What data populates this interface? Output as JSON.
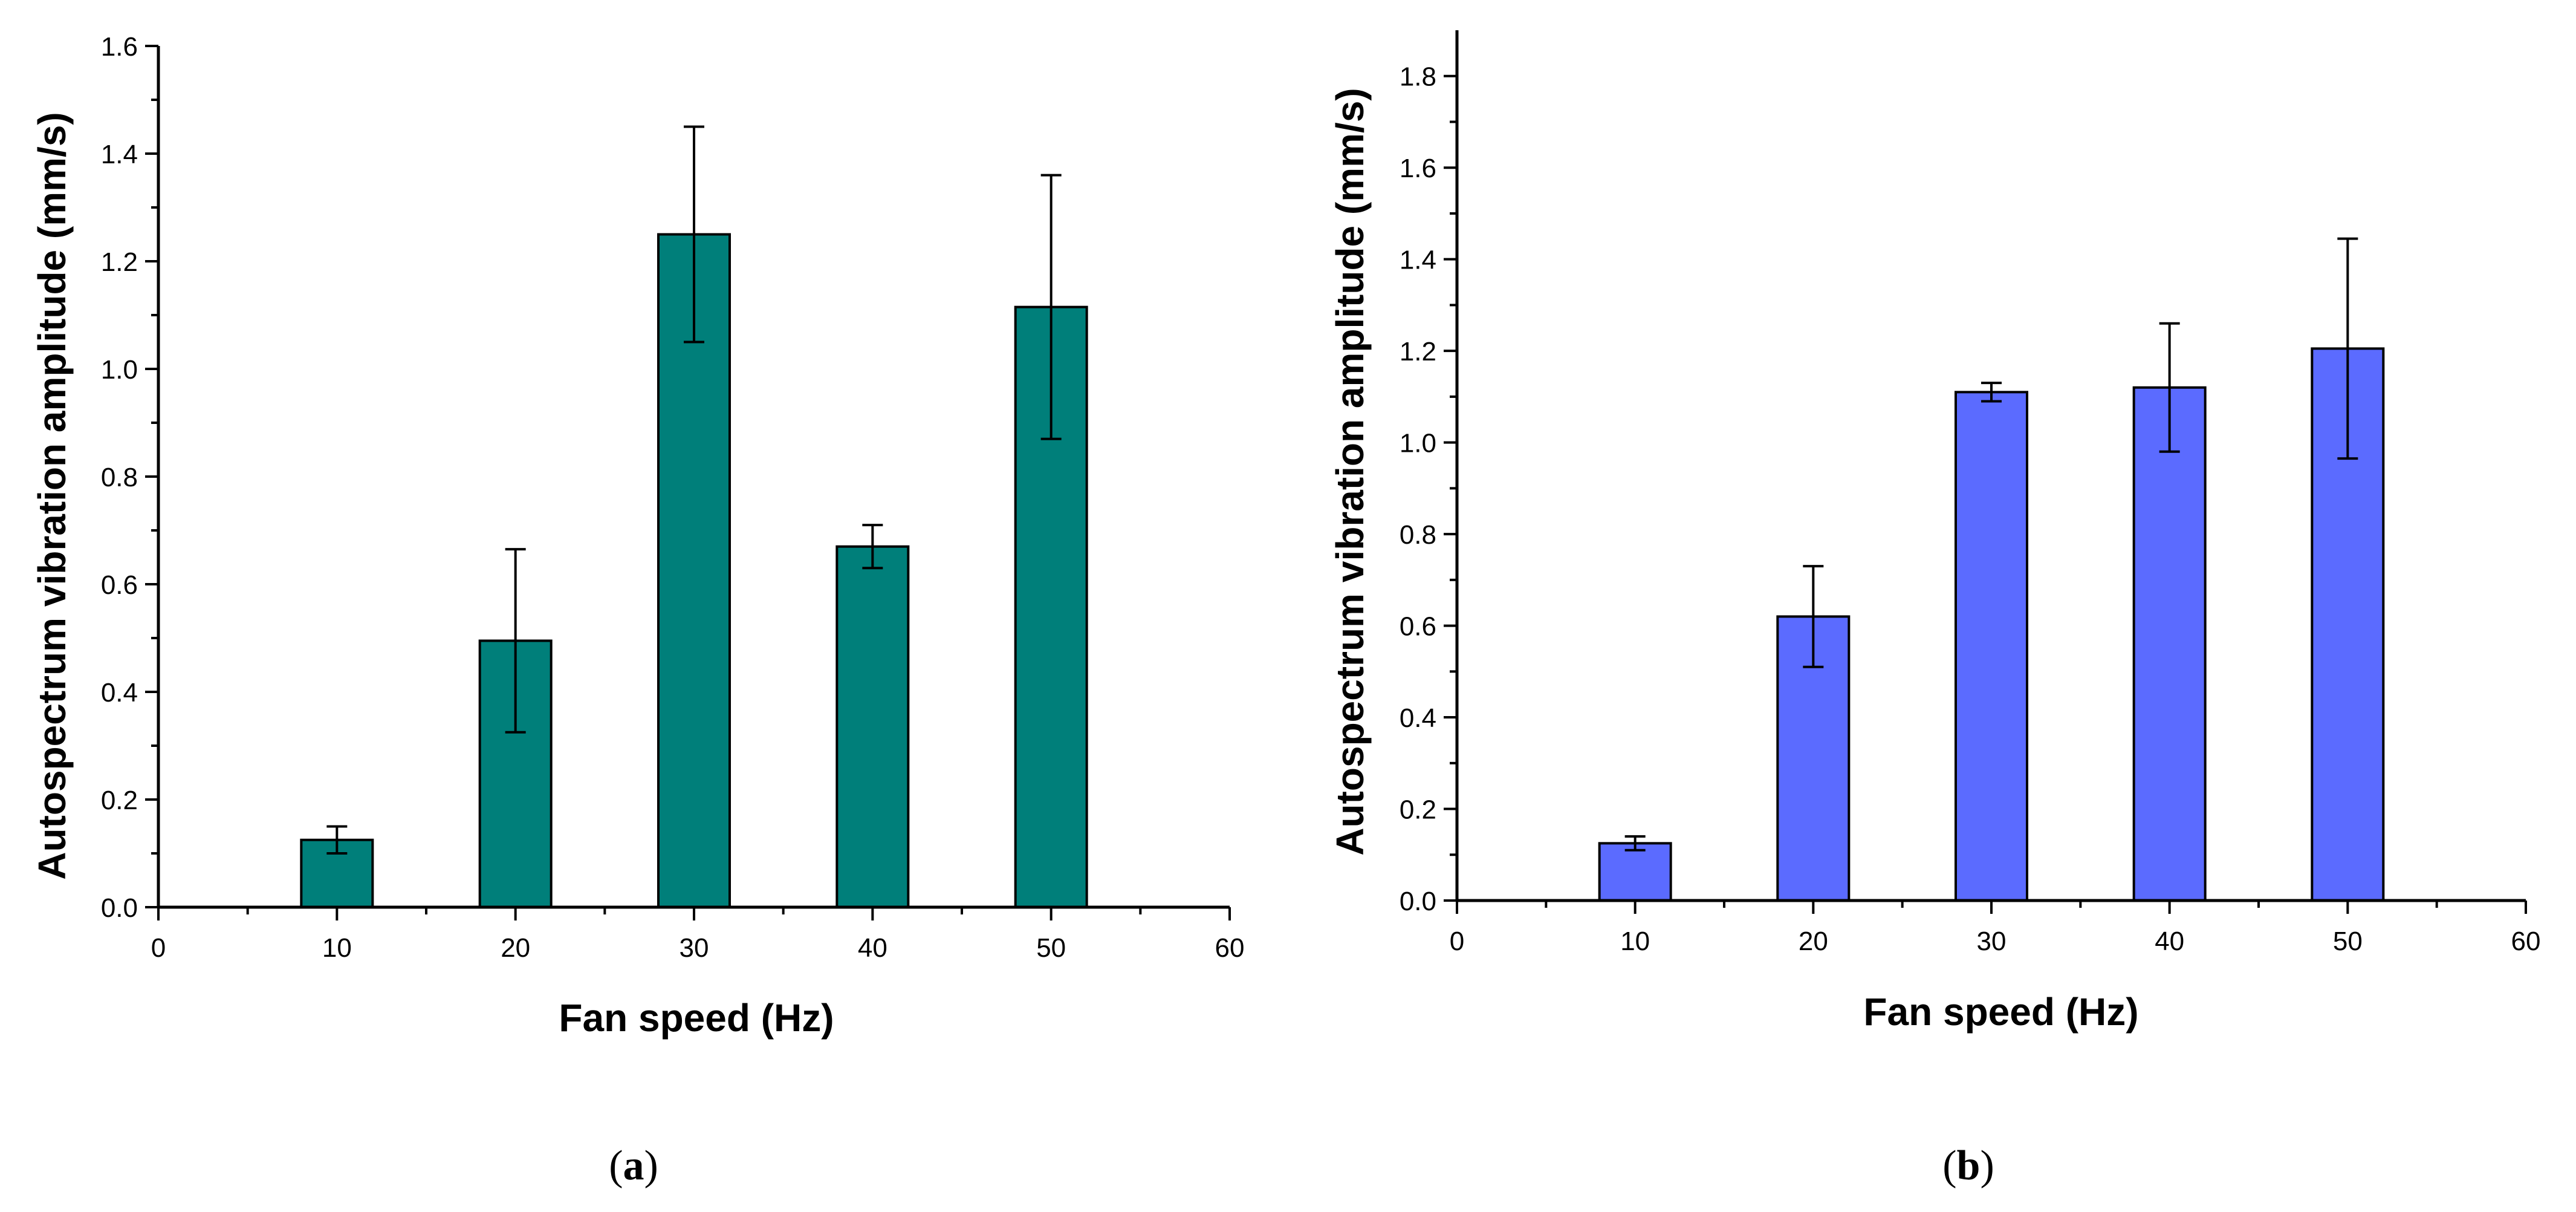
{
  "chart_data": [
    {
      "type": "bar",
      "panel_label": "a",
      "xlabel": "Fan speed (Hz)",
      "ylabel": "Autospectrum vibration amplitude (mm/s)",
      "x": [
        10,
        20,
        30,
        40,
        50
      ],
      "values": [
        0.125,
        0.495,
        1.25,
        0.67,
        1.115
      ],
      "errors": [
        0.025,
        0.17,
        0.2,
        0.04,
        0.245
      ],
      "xlim": [
        0,
        60
      ],
      "ylim": [
        0,
        1.6
      ],
      "xticks": [
        0,
        10,
        20,
        30,
        40,
        50,
        60
      ],
      "yticks": [
        "0.0",
        "0.2",
        "0.4",
        "0.6",
        "0.8",
        "1.0",
        "1.2",
        "1.4",
        "1.6"
      ],
      "bar_color": "#007F7A",
      "grid": false
    },
    {
      "type": "bar",
      "panel_label": "b",
      "xlabel": "Fan speed (Hz)",
      "ylabel": "Autospectrum vibration amplitude (mm/s)",
      "x": [
        10,
        20,
        30,
        40,
        50
      ],
      "values": [
        0.125,
        0.62,
        1.11,
        1.12,
        1.205
      ],
      "errors": [
        0.015,
        0.11,
        0.02,
        0.14,
        0.24
      ],
      "xlim": [
        0,
        60
      ],
      "ylim": [
        0,
        1.9
      ],
      "xticks": [
        0,
        10,
        20,
        30,
        40,
        50,
        60
      ],
      "yticks": [
        "0.0",
        "0.2",
        "0.4",
        "0.6",
        "0.8",
        "1.0",
        "1.2",
        "1.4",
        "1.6",
        "1.8"
      ],
      "bar_color": "#5B6BFF",
      "grid": false
    }
  ]
}
